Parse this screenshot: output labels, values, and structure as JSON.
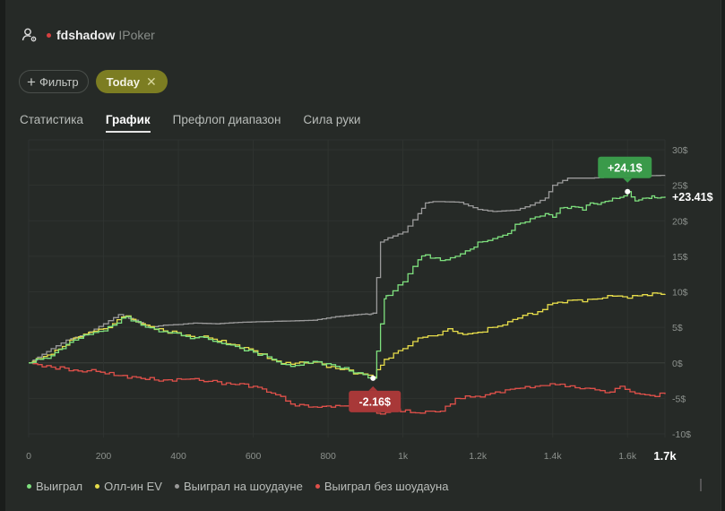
{
  "header": {
    "player_name": "fdshadow",
    "site_name": "IPoker"
  },
  "filters": {
    "filter_label": "Фильтр",
    "today_label": "Today"
  },
  "tabs": [
    {
      "label": "Статистика",
      "active": false
    },
    {
      "label": "График",
      "active": true
    },
    {
      "label": "Префлоп диапазон",
      "active": false
    },
    {
      "label": "Сила руки",
      "active": false
    }
  ],
  "annotations": {
    "max_label": "+24.1$",
    "min_label": "-2.16$",
    "end_label": "+23.41$"
  },
  "legend": [
    {
      "label": "Выиграл",
      "color": "#7ee07e"
    },
    {
      "label": "Олл-ин EV",
      "color": "#e6dc4a"
    },
    {
      "label": "Выиграл на шоудауне",
      "color": "#9a9a9a"
    },
    {
      "label": "Выиграл без шоудауна",
      "color": "#e0504a"
    }
  ],
  "colors": {
    "won": "#7ee07e",
    "allin_ev": "#e6dc4a",
    "showdown": "#9a9a9a",
    "non_showdown": "#e0504a",
    "max_badge": "#3a9a4a",
    "min_badge": "#a83838"
  },
  "chart_data": {
    "type": "line",
    "x_ticks": [
      "0",
      "200",
      "400",
      "600",
      "800",
      "1k",
      "1.2k",
      "1.4k",
      "1.6k",
      "1.7k"
    ],
    "y_ticks": [
      "30$",
      "25$",
      "20$",
      "15$",
      "10$",
      "5$",
      "0$",
      "-5$",
      "-10$"
    ],
    "xlim": [
      0,
      1700
    ],
    "ylim": [
      -10,
      30
    ],
    "grid": true,
    "legend_position": "bottom",
    "series": [
      {
        "name": "Выиграл",
        "x": [
          0,
          30,
          60,
          90,
          120,
          160,
          200,
          260,
          300,
          360,
          420,
          480,
          540,
          600,
          650,
          700,
          760,
          820,
          880,
          920,
          950,
          960,
          1000,
          1040,
          1060,
          1100,
          1140,
          1180,
          1200,
          1240,
          1280,
          1300,
          1340,
          1380,
          1400,
          1420,
          1450,
          1480,
          1500,
          1520,
          1550,
          1580,
          1600,
          1620,
          1650,
          1665,
          1680,
          1700
        ],
        "y": [
          0,
          0.5,
          1,
          2,
          3.2,
          4.0,
          4.5,
          6.5,
          5.3,
          4.4,
          3.7,
          3.3,
          2.5,
          1.5,
          0.5,
          -0.5,
          0.2,
          -0.5,
          -1.4,
          -2.16,
          9.0,
          9.5,
          11.4,
          14.5,
          15.2,
          14.4,
          15.0,
          16.0,
          17.0,
          17.5,
          18.2,
          19.5,
          20.3,
          21.0,
          20.5,
          21.8,
          22.0,
          21.5,
          22.5,
          22.3,
          22.8,
          23.3,
          24.1,
          22.8,
          23.2,
          23.5,
          23.2,
          23.41
        ]
      },
      {
        "name": "Олл-ин EV",
        "x": [
          0,
          30,
          60,
          90,
          120,
          160,
          200,
          260,
          300,
          360,
          420,
          480,
          540,
          600,
          650,
          700,
          760,
          820,
          880,
          920,
          950,
          1000,
          1040,
          1080,
          1120,
          1160,
          1200,
          1240,
          1280,
          1320,
          1360,
          1400,
          1440,
          1480,
          1520,
          1560,
          1600,
          1640,
          1680,
          1700
        ],
        "y": [
          0,
          0.6,
          1.2,
          2.3,
          3.5,
          4.3,
          4.8,
          6.6,
          5.5,
          4.5,
          3.9,
          3.5,
          2.6,
          1.7,
          0.4,
          -0.2,
          0.1,
          -0.8,
          -1.5,
          -2.0,
          0.5,
          2.0,
          3.5,
          3.8,
          4.8,
          4.0,
          4.3,
          5.0,
          5.8,
          6.7,
          7.2,
          8.4,
          8.8,
          8.6,
          9.0,
          9.4,
          9.1,
          9.6,
          9.8,
          9.7
        ]
      },
      {
        "name": "Выиграл на шоудауне",
        "x": [
          0,
          60,
          100,
          150,
          200,
          240,
          280,
          320,
          360,
          400,
          440,
          500,
          560,
          620,
          700,
          760,
          820,
          880,
          900,
          910,
          920,
          940,
          960,
          1000,
          1040,
          1060,
          1080,
          1100,
          1150,
          1200,
          1240,
          1300,
          1340,
          1380,
          1400,
          1440,
          1500,
          1560,
          1620,
          1700
        ],
        "y": [
          0,
          2.0,
          3.2,
          4.0,
          5.5,
          6.8,
          6.0,
          5.0,
          5.3,
          5.4,
          5.6,
          5.5,
          5.7,
          5.8,
          5.9,
          6.0,
          6.5,
          6.8,
          6.9,
          6.8,
          7.0,
          17.0,
          17.6,
          18.4,
          21.0,
          22.5,
          22.7,
          22.7,
          22.6,
          21.6,
          21.3,
          21.5,
          22.2,
          23.2,
          25.0,
          26.0,
          26.0,
          26.2,
          26.3,
          26.4
        ]
      },
      {
        "name": "Выиграл без шоудауна",
        "x": [
          0,
          60,
          120,
          180,
          240,
          300,
          360,
          420,
          480,
          540,
          600,
          660,
          700,
          760,
          820,
          880,
          920,
          940,
          980,
          1020,
          1060,
          1100,
          1140,
          1180,
          1220,
          1260,
          1300,
          1340,
          1380,
          1420,
          1460,
          1500,
          1540,
          1580,
          1620,
          1660,
          1700
        ],
        "y": [
          0,
          -0.6,
          -1.0,
          -1.2,
          -1.8,
          -2.2,
          -2.4,
          -2.3,
          -2.6,
          -3.0,
          -3.3,
          -4.5,
          -5.8,
          -6.2,
          -6.0,
          -6.4,
          -6.8,
          -7.2,
          -6.5,
          -7.0,
          -6.8,
          -6.8,
          -5.0,
          -4.8,
          -4.5,
          -4.2,
          -3.6,
          -3.5,
          -3.2,
          -3.0,
          -3.5,
          -3.6,
          -4.2,
          -3.3,
          -4.3,
          -4.6,
          -4.4
        ]
      }
    ]
  }
}
